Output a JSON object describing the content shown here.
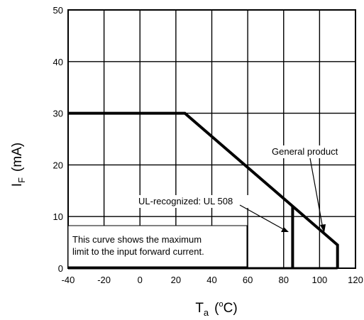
{
  "chart_data": {
    "type": "line",
    "title": "",
    "xlabel": {
      "main": "T",
      "sub": "a",
      "unit_open": "(",
      "unit_deg": "o",
      "unit_rest": "C)"
    },
    "ylabel": {
      "main": "I",
      "sub": "F",
      "unit": "(mA)"
    },
    "xlim": [
      -40,
      120
    ],
    "ylim": [
      0,
      50
    ],
    "grid": true,
    "xticks": [
      "-40",
      "-20",
      "0",
      "20",
      "40",
      "60",
      "80",
      "100",
      "120"
    ],
    "yticks": [
      "0",
      "10",
      "20",
      "30",
      "40",
      "50"
    ],
    "series": [
      {
        "name": "General product",
        "x": [
          -40,
          25,
          110,
          110
        ],
        "y": [
          30,
          30,
          4.5,
          0
        ]
      },
      {
        "name": "UL-recognized: UL 508",
        "x": [
          85,
          85
        ],
        "y": [
          12,
          0
        ]
      }
    ],
    "annotations": {
      "general": "General product",
      "ul": "UL-recognized: UL 508",
      "note_line1": "This curve shows the maximum",
      "note_line2": "limit to the input forward current."
    }
  }
}
